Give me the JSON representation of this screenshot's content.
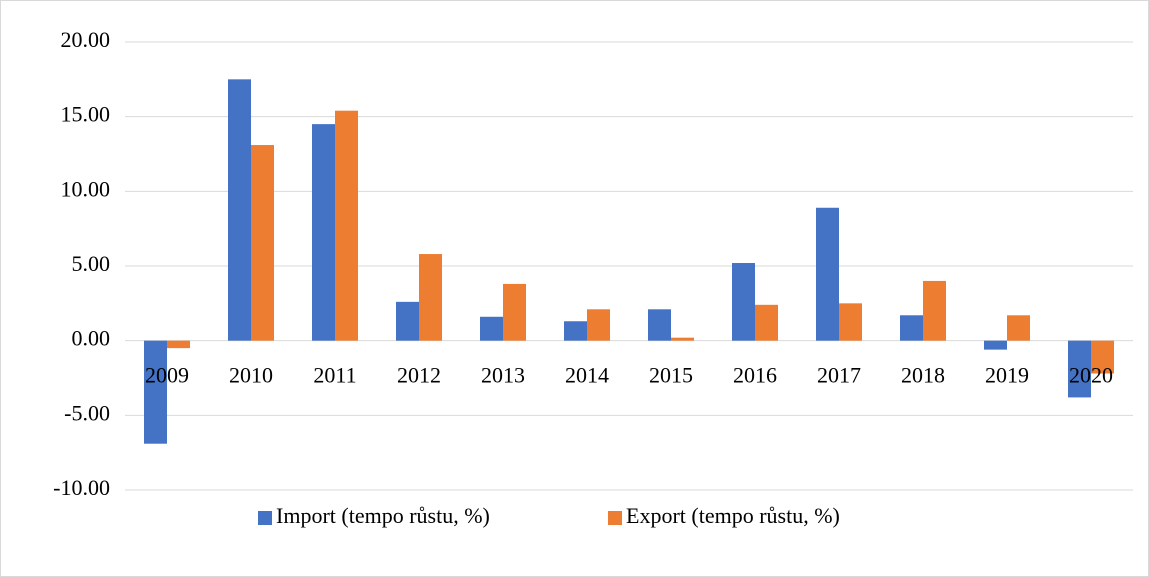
{
  "chart_data": {
    "type": "bar",
    "categories": [
      "2009",
      "2010",
      "2011",
      "2012",
      "2013",
      "2014",
      "2015",
      "2016",
      "2017",
      "2018",
      "2019",
      "2020"
    ],
    "series": [
      {
        "name": "Import (tempo růstu, %)",
        "color": "#4472c4",
        "values": [
          -6.9,
          17.5,
          14.5,
          2.6,
          1.6,
          1.3,
          2.1,
          5.2,
          8.9,
          1.7,
          -0.6,
          -3.8
        ]
      },
      {
        "name": "Export (tempo růstu, %)",
        "color": "#ed7d31",
        "values": [
          -0.5,
          13.1,
          15.4,
          5.8,
          3.8,
          2.1,
          0.2,
          2.4,
          2.5,
          4.0,
          1.7,
          -2.2
        ]
      }
    ],
    "ylim": [
      -10,
      20
    ],
    "yticks": [
      {
        "value": -10,
        "label": "-10.00"
      },
      {
        "value": -5,
        "label": "-5.00"
      },
      {
        "value": 0,
        "label": "0.00"
      },
      {
        "value": 5,
        "label": "5.00"
      },
      {
        "value": 10,
        "label": "10.00"
      },
      {
        "value": 15,
        "label": "15.00"
      },
      {
        "value": 20,
        "label": "20.00"
      }
    ],
    "grid": true,
    "legend": "bottom"
  }
}
